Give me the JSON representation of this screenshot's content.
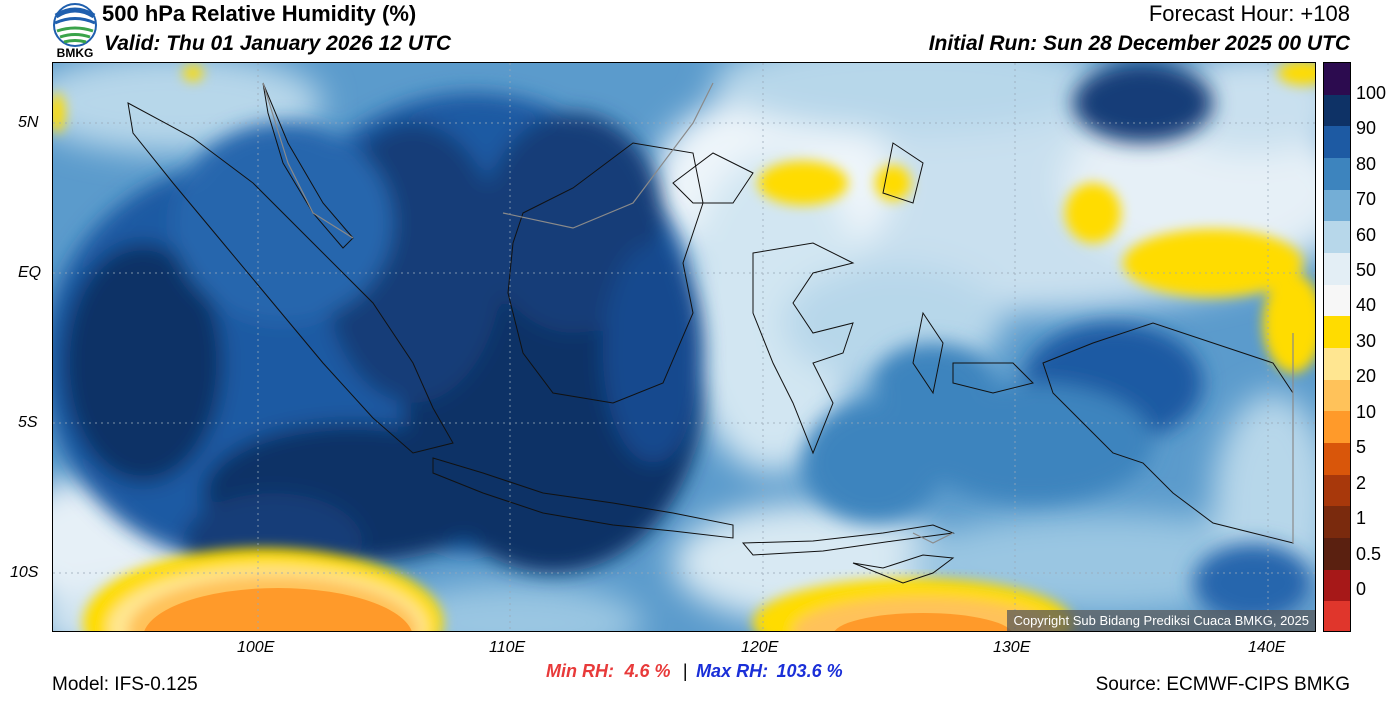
{
  "header": {
    "title": "500 hPa Relative Humidity (%)",
    "valid": "Valid: Thu 01 January 2026 12 UTC",
    "forecast_hour": "Forecast Hour: +108",
    "initial_run": "Initial Run: Sun 28 December 2025 00 UTC",
    "logo_text": "BMKG"
  },
  "axes": {
    "lat_labels": [
      "5N",
      "EQ",
      "5S",
      "10S"
    ],
    "lon_labels": [
      "100E",
      "110E",
      "120E",
      "130E",
      "140E"
    ]
  },
  "colorbar": {
    "labels": [
      "100",
      "90",
      "80",
      "70",
      "60",
      "50",
      "40",
      "30",
      "20",
      "10",
      "5",
      "2",
      "1",
      "0.5",
      "0"
    ],
    "colors": [
      "#2c0b4f",
      "#0e3266",
      "#1d5aa3",
      "#3d84be",
      "#74aed6",
      "#b7d7ea",
      "#e3eef5",
      "#f7f7f7",
      "#ffdc00",
      "#ffe691",
      "#ffc25a",
      "#ff9a2a",
      "#d9560a",
      "#a8380b",
      "#7a2a0d",
      "#5a2010",
      "#a61818",
      "#e0362c"
    ]
  },
  "stats": {
    "min_label": "Min RH:",
    "min_value": "4.6 %",
    "separator": "|",
    "max_label": "Max RH:",
    "max_value": "103.6 %"
  },
  "footer": {
    "model": "Model: IFS-0.125",
    "source": "Source: ECMWF-CIPS BMKG",
    "copyright": "Copyright Sub Bidang Prediksi Cuaca BMKG, 2025"
  },
  "colors": {
    "min_color": "#e83a3a",
    "max_color": "#1a2fd8"
  }
}
